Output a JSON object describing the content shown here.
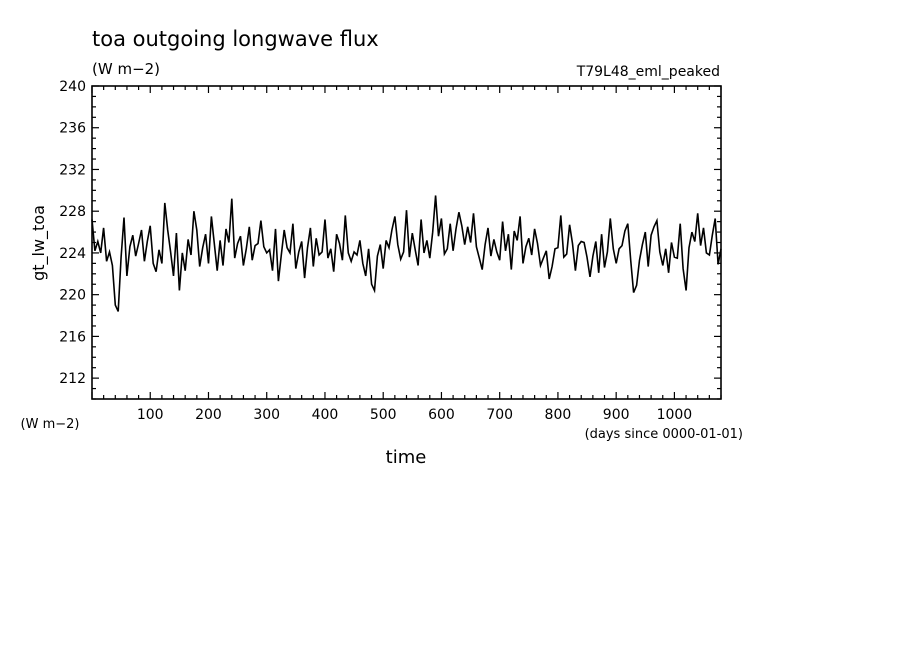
{
  "chart_data": {
    "type": "line",
    "title": "toa outgoing longwave flux",
    "subtitle": "(W m−2)",
    "run_label": "T79L48_eml_peaked",
    "xlabel": "time",
    "x_units": "(days since 0000-01-01)",
    "ylabel": "gt_lw_toa",
    "y_units": "(W m−2)",
    "xlim": [
      0,
      1080
    ],
    "ylim": [
      210,
      240
    ],
    "x_major_ticks": [
      100,
      200,
      300,
      400,
      500,
      600,
      700,
      800,
      900,
      1000
    ],
    "y_major_ticks": [
      212,
      216,
      220,
      224,
      228,
      232,
      236,
      240
    ],
    "grid": false,
    "line_color": "#000000",
    "series": [
      {
        "x": [
          0,
          5,
          10,
          15,
          20,
          25,
          30,
          35,
          40,
          45,
          50,
          55,
          60,
          65,
          70,
          75,
          80,
          85,
          90,
          95,
          100,
          105,
          110,
          115,
          120,
          125,
          130,
          135,
          140,
          145,
          150,
          155,
          160,
          165,
          170,
          175,
          180,
          185,
          190,
          195,
          200,
          205,
          210,
          215,
          220,
          225,
          230,
          235,
          240,
          245,
          250,
          255,
          260,
          265,
          270,
          275,
          280,
          285,
          290,
          295,
          300,
          305,
          310,
          315,
          320,
          325,
          330,
          335,
          340,
          345,
          350,
          355,
          360,
          365,
          370,
          375,
          380,
          385,
          390,
          395,
          400,
          405,
          410,
          415,
          420,
          425,
          430,
          435,
          440,
          445,
          450,
          455,
          460,
          465,
          470,
          475,
          480,
          485,
          490,
          495,
          500,
          505,
          510,
          515,
          520,
          525,
          530,
          535,
          540,
          545,
          550,
          555,
          560,
          565,
          570,
          575,
          580,
          585,
          590,
          595,
          600,
          605,
          610,
          615,
          620,
          625,
          630,
          635,
          640,
          645,
          650,
          655,
          660,
          665,
          670,
          675,
          680,
          685,
          690,
          695,
          700,
          705,
          710,
          715,
          720,
          725,
          730,
          735,
          740,
          745,
          750,
          755,
          760,
          765,
          770,
          775,
          780,
          785,
          790,
          795,
          800,
          805,
          810,
          815,
          820,
          825,
          830,
          835,
          840,
          845,
          850,
          855,
          860,
          865,
          870,
          875,
          880,
          885,
          890,
          895,
          900,
          905,
          910,
          915,
          920,
          925,
          930,
          935,
          940,
          945,
          950,
          955,
          960,
          965,
          970,
          975,
          980,
          985,
          990,
          995,
          1000,
          1005,
          1010,
          1015,
          1020,
          1025,
          1030,
          1035,
          1040,
          1045,
          1050,
          1055,
          1060,
          1065,
          1070,
          1075,
          1080
        ],
        "y": [
          227.2,
          224.2,
          225.1,
          224.0,
          226.4,
          223.2,
          224.1,
          222.8,
          219.0,
          218.4,
          223.6,
          227.4,
          221.8,
          224.6,
          225.7,
          223.7,
          224.9,
          226.2,
          223.2,
          225.1,
          226.6,
          223.0,
          222.2,
          224.3,
          223.0,
          228.8,
          226.2,
          224.1,
          221.8,
          225.9,
          220.4,
          224.0,
          222.3,
          225.3,
          223.8,
          228.0,
          226.2,
          222.7,
          224.5,
          225.8,
          223.0,
          227.5,
          224.9,
          222.3,
          225.2,
          222.8,
          226.3,
          225.0,
          229.2,
          223.5,
          224.9,
          225.6,
          222.8,
          224.4,
          226.5,
          223.3,
          224.7,
          224.9,
          227.1,
          224.6,
          224.0,
          224.3,
          222.3,
          226.3,
          221.3,
          223.8,
          226.2,
          224.5,
          224.0,
          226.8,
          222.5,
          224.1,
          225.1,
          221.6,
          224.5,
          226.4,
          222.7,
          225.4,
          223.8,
          224.1,
          227.2,
          223.5,
          224.4,
          222.2,
          225.8,
          224.9,
          223.3,
          227.6,
          224.0,
          223.2,
          224.1,
          223.8,
          225.2,
          223.0,
          221.8,
          224.4,
          221.0,
          220.4,
          223.7,
          224.8,
          222.5,
          225.2,
          224.5,
          226.2,
          227.5,
          224.8,
          223.4,
          224.1,
          228.1,
          223.6,
          225.9,
          224.3,
          222.8,
          227.2,
          224.0,
          225.2,
          223.5,
          226.0,
          229.5,
          225.6,
          227.3,
          223.9,
          224.4,
          226.8,
          224.2,
          226.3,
          227.9,
          226.6,
          224.8,
          226.5,
          225.0,
          227.8,
          224.6,
          223.5,
          222.4,
          224.8,
          226.4,
          223.7,
          225.3,
          224.1,
          223.3,
          227.0,
          224.2,
          225.8,
          222.4,
          226.1,
          225.2,
          227.5,
          223.0,
          224.6,
          225.4,
          223.8,
          226.3,
          224.9,
          222.8,
          223.5,
          224.2,
          221.5,
          222.7,
          224.4,
          224.5,
          227.6,
          223.6,
          223.9,
          226.7,
          224.9,
          222.3,
          224.7,
          225.1,
          225.0,
          223.6,
          221.7,
          223.7,
          225.1,
          222.1,
          225.8,
          222.6,
          224.1,
          227.3,
          224.4,
          223.0,
          224.4,
          224.7,
          226.1,
          226.8,
          223.3,
          220.2,
          220.9,
          223.3,
          224.8,
          226.0,
          222.7,
          225.7,
          226.5,
          227.1,
          224.1,
          222.8,
          224.4,
          222.1,
          225.0,
          223.6,
          223.5,
          226.8,
          222.5,
          220.4,
          224.5,
          226.0,
          225.1,
          227.8,
          224.7,
          226.4,
          224.0,
          223.8,
          225.7,
          227.3,
          222.9,
          224.4
        ]
      }
    ]
  }
}
